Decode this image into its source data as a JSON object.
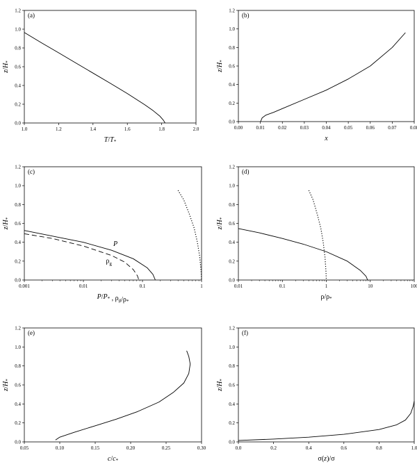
{
  "chart_data": [
    {
      "id": "a",
      "type": "line",
      "panel_label": "(a)",
      "xlabel": "T/T*",
      "ylabel": "z/H*",
      "xlim": [
        1.0,
        2.0
      ],
      "ylim": [
        0.0,
        1.2
      ],
      "xscale": "linear",
      "xticks": [
        1.0,
        1.2,
        1.4,
        1.6,
        1.8,
        2.0
      ],
      "xtick_labels": [
        "1.0",
        "1.2",
        "1.4",
        "1.6",
        "1.8",
        "2.0"
      ],
      "yticks": [
        0.0,
        0.2,
        0.4,
        0.6,
        0.8,
        1.0,
        1.2
      ],
      "ytick_labels": [
        "0.0",
        "0.2",
        "0.4",
        "0.6",
        "0.8",
        "1.0",
        "1.2"
      ],
      "grid": false,
      "series": [
        {
          "style": "solid",
          "points": [
            [
              1.0,
              0.965
            ],
            [
              1.1,
              0.855
            ],
            [
              1.2,
              0.748
            ],
            [
              1.3,
              0.64
            ],
            [
              1.4,
              0.532
            ],
            [
              1.5,
              0.424
            ],
            [
              1.6,
              0.314
            ],
            [
              1.7,
              0.196
            ],
            [
              1.75,
              0.132
            ],
            [
              1.79,
              0.072
            ],
            [
              1.81,
              0.03
            ],
            [
              1.82,
              0.0
            ]
          ]
        }
      ]
    },
    {
      "id": "b",
      "type": "line",
      "panel_label": "(b)",
      "xlabel": "x",
      "ylabel": "z/H*",
      "xlim": [
        0.0,
        0.08
      ],
      "ylim": [
        0.0,
        1.2
      ],
      "xscale": "linear",
      "xticks": [
        0.0,
        0.01,
        0.02,
        0.03,
        0.04,
        0.05,
        0.06,
        0.07,
        0.08
      ],
      "xtick_labels": [
        "0.00",
        "0.01",
        "0.02",
        "0.03",
        "0.04",
        "0.05",
        "0.06",
        "0.07",
        "0.08"
      ],
      "yticks": [
        0.0,
        0.2,
        0.4,
        0.6,
        0.8,
        1.0,
        1.2
      ],
      "ytick_labels": [
        "0.0",
        "0.2",
        "0.4",
        "0.6",
        "0.8",
        "1.0",
        "1.2"
      ],
      "grid": false,
      "series": [
        {
          "style": "solid",
          "points": [
            [
              0.0101,
              0.0
            ],
            [
              0.0108,
              0.04
            ],
            [
              0.0125,
              0.07
            ],
            [
              0.016,
              0.1
            ],
            [
              0.02,
              0.14
            ],
            [
              0.03,
              0.24
            ],
            [
              0.04,
              0.34
            ],
            [
              0.05,
              0.46
            ],
            [
              0.06,
              0.6
            ],
            [
              0.07,
              0.8
            ],
            [
              0.076,
              0.96
            ]
          ]
        }
      ]
    },
    {
      "id": "c",
      "type": "line",
      "panel_label": "(c)",
      "xlabel": "P/P*  ,  ρg/ρ*",
      "ylabel": "z/H*",
      "xlim": [
        0.001,
        1
      ],
      "ylim": [
        0.0,
        1.2
      ],
      "xscale": "log",
      "xticks": [
        0.001,
        0.01,
        0.1,
        1
      ],
      "xtick_labels": [
        "0.001",
        "0.01",
        "0.1",
        "1"
      ],
      "yticks": [
        0.0,
        0.2,
        0.4,
        0.6,
        0.8,
        1.0,
        1.2
      ],
      "ytick_labels": [
        "0.0",
        "0.2",
        "0.4",
        "0.6",
        "0.8",
        "1.0",
        "1.2"
      ],
      "grid": false,
      "annotations": [
        {
          "text": "P",
          "x": 0.032,
          "y": 0.36,
          "italic": true
        },
        {
          "text": "ρ",
          "sub": "g",
          "x": 0.024,
          "y": 0.18
        }
      ],
      "series": [
        {
          "name": "P",
          "style": "solid",
          "points": [
            [
              0.001,
              0.525
            ],
            [
              0.003,
              0.465
            ],
            [
              0.01,
              0.4
            ],
            [
              0.03,
              0.315
            ],
            [
              0.07,
              0.225
            ],
            [
              0.12,
              0.13
            ],
            [
              0.15,
              0.06
            ],
            [
              0.165,
              0.0
            ]
          ]
        },
        {
          "name": "ρg",
          "style": "dashed",
          "points": [
            [
              0.001,
              0.49
            ],
            [
              0.003,
              0.44
            ],
            [
              0.01,
              0.36
            ],
            [
              0.03,
              0.26
            ],
            [
              0.05,
              0.19
            ],
            [
              0.07,
              0.11
            ],
            [
              0.082,
              0.045
            ],
            [
              0.087,
              0.0
            ]
          ]
        },
        {
          "style": "dotted",
          "points": [
            [
              0.4,
              0.95
            ],
            [
              0.5,
              0.85
            ],
            [
              0.62,
              0.7
            ],
            [
              0.75,
              0.55
            ],
            [
              0.85,
              0.4
            ],
            [
              0.93,
              0.25
            ],
            [
              0.98,
              0.1
            ],
            [
              1.0,
              0.0
            ]
          ]
        }
      ]
    },
    {
      "id": "d",
      "type": "line",
      "panel_label": "(d)",
      "xlabel": "ρ/ρ*",
      "ylabel": "z/H*",
      "xlim": [
        0.01,
        100
      ],
      "ylim": [
        0.0,
        1.2
      ],
      "xscale": "log",
      "xticks": [
        0.01,
        0.1,
        1,
        10,
        100
      ],
      "xtick_labels": [
        "0.01",
        "0.1",
        "1",
        "10",
        "100"
      ],
      "yticks": [
        0.0,
        0.2,
        0.4,
        0.6,
        0.8,
        1.0,
        1.2
      ],
      "ytick_labels": [
        "0.0",
        "0.2",
        "0.4",
        "0.6",
        "0.8",
        "1.0",
        "1.2"
      ],
      "grid": false,
      "series": [
        {
          "style": "solid",
          "points": [
            [
              0.01,
              0.545
            ],
            [
              0.03,
              0.5
            ],
            [
              0.1,
              0.44
            ],
            [
              0.3,
              0.38
            ],
            [
              1.0,
              0.3
            ],
            [
              3.0,
              0.2
            ],
            [
              6.0,
              0.1
            ],
            [
              8.0,
              0.04
            ],
            [
              8.7,
              0.0
            ]
          ]
        },
        {
          "style": "dotted",
          "points": [
            [
              0.4,
              0.95
            ],
            [
              0.5,
              0.85
            ],
            [
              0.62,
              0.7
            ],
            [
              0.75,
              0.55
            ],
            [
              0.85,
              0.4
            ],
            [
              0.93,
              0.25
            ],
            [
              0.98,
              0.1
            ],
            [
              1.0,
              0.0
            ]
          ]
        }
      ]
    },
    {
      "id": "e",
      "type": "line",
      "panel_label": "(e)",
      "xlabel": "c/c*",
      "ylabel": "z/H*",
      "xlim": [
        0.05,
        0.3
      ],
      "ylim": [
        0.0,
        1.2
      ],
      "xscale": "linear",
      "xticks": [
        0.05,
        0.1,
        0.15,
        0.2,
        0.25,
        0.3
      ],
      "xtick_labels": [
        "0.05",
        "0.10",
        "0.15",
        "0.20",
        "0.25",
        "0.30"
      ],
      "yticks": [
        0.0,
        0.2,
        0.4,
        0.6,
        0.8,
        1.0,
        1.2
      ],
      "ytick_labels": [
        "0.0",
        "0.2",
        "0.4",
        "0.6",
        "0.8",
        "1.0",
        "1.2"
      ],
      "grid": false,
      "series": [
        {
          "style": "solid",
          "points": [
            [
              0.094,
              0.02
            ],
            [
              0.1,
              0.05
            ],
            [
              0.12,
              0.1
            ],
            [
              0.15,
              0.17
            ],
            [
              0.18,
              0.24
            ],
            [
              0.21,
              0.32
            ],
            [
              0.24,
              0.42
            ],
            [
              0.26,
              0.52
            ],
            [
              0.275,
              0.62
            ],
            [
              0.282,
              0.72
            ],
            [
              0.284,
              0.82
            ],
            [
              0.282,
              0.9
            ],
            [
              0.279,
              0.96
            ]
          ]
        }
      ]
    },
    {
      "id": "f",
      "type": "line",
      "panel_label": "(f)",
      "xlabel": "σ(z)/σ",
      "ylabel": "z/H*",
      "xlim": [
        0.0,
        1.0
      ],
      "ylim": [
        0.0,
        1.2
      ],
      "xscale": "linear",
      "xticks": [
        0.0,
        0.2,
        0.4,
        0.6,
        0.8,
        1.0
      ],
      "xtick_labels": [
        "0.0",
        "0.2",
        "0.4",
        "0.6",
        "0.8",
        "1.0"
      ],
      "yticks": [
        0.0,
        0.2,
        0.4,
        0.6,
        0.8,
        1.0,
        1.2
      ],
      "ytick_labels": [
        "0.0",
        "0.2",
        "0.4",
        "0.6",
        "0.8",
        "1.0",
        "1.2"
      ],
      "grid": false,
      "series": [
        {
          "style": "solid",
          "points": [
            [
              0.0,
              0.015
            ],
            [
              0.2,
              0.03
            ],
            [
              0.4,
              0.05
            ],
            [
              0.6,
              0.08
            ],
            [
              0.8,
              0.13
            ],
            [
              0.9,
              0.18
            ],
            [
              0.95,
              0.23
            ],
            [
              0.98,
              0.3
            ],
            [
              0.995,
              0.38
            ],
            [
              1.0,
              0.43
            ]
          ]
        }
      ]
    }
  ]
}
